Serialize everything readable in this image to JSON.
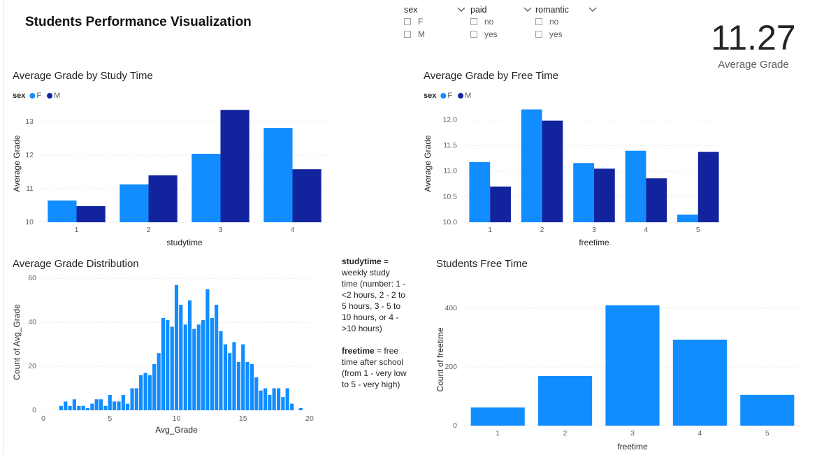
{
  "header": {
    "title": "Students Performance Visualization"
  },
  "slicers": [
    {
      "field": "sex",
      "options": [
        "F",
        "M"
      ]
    },
    {
      "field": "paid",
      "options": [
        "no",
        "yes"
      ]
    },
    {
      "field": "romantic",
      "options": [
        "no",
        "yes"
      ]
    }
  ],
  "card": {
    "value": 11.27,
    "label": "Average Grade"
  },
  "note": [
    {
      "term": "studytime",
      "text": "= weekly study time (number: 1 - <2 hours, 2 - 2 to 5 hours, 3 - 5 to 10 hours, or 4 - >10 hours)"
    },
    {
      "term": "freetime",
      "text": "= free time after school (from 1 - very low to 5 - very high)"
    }
  ],
  "chart_data": [
    {
      "type": "bar",
      "title": "Average Grade by Study Time",
      "legend_title": "sex",
      "categories": [
        "1",
        "2",
        "3",
        "4"
      ],
      "series": [
        {
          "name": "F",
          "color": "#118dff",
          "values": [
            10.65,
            11.13,
            12.04,
            12.81
          ]
        },
        {
          "name": "M",
          "color": "#12239e",
          "values": [
            10.48,
            11.4,
            13.35,
            11.58
          ]
        }
      ],
      "x_label": "studytime",
      "y_label": "Average Grade",
      "ylim": [
        10,
        13.5
      ],
      "yticks": [
        10,
        11,
        12,
        13
      ],
      "grid": true
    },
    {
      "type": "bar",
      "title": "Average Grade by Free Time",
      "legend_title": "sex",
      "categories": [
        "1",
        "2",
        "3",
        "4",
        "5"
      ],
      "series": [
        {
          "name": "F",
          "color": "#118dff",
          "values": [
            11.18,
            12.21,
            11.16,
            11.4,
            10.15
          ]
        },
        {
          "name": "M",
          "color": "#12239e",
          "values": [
            10.7,
            11.99,
            11.05,
            10.86,
            11.38
          ]
        }
      ],
      "x_label": "freetime",
      "y_label": "Average Grade",
      "ylim": [
        10,
        12.3
      ],
      "yticks": [
        {
          "value": 10,
          "label": "10.0"
        },
        10.5,
        {
          "value": 11,
          "label": "11.0"
        },
        11.5,
        {
          "value": 12,
          "label": "12.0"
        }
      ],
      "grid": true
    },
    {
      "type": "bar",
      "title": "Average Grade Distribution",
      "color": "#118dff",
      "x": [
        1.33,
        1.67,
        2,
        2.33,
        2.67,
        3,
        3.33,
        3.67,
        4,
        4.33,
        4.67,
        5,
        5.33,
        5.67,
        6,
        6.33,
        6.67,
        7,
        7.33,
        7.67,
        8,
        8.33,
        8.67,
        9,
        9.33,
        9.67,
        10,
        10.33,
        10.67,
        11,
        11.33,
        11.67,
        12,
        12.33,
        12.67,
        13,
        13.33,
        13.67,
        14,
        14.33,
        14.67,
        15,
        15.33,
        15.67,
        16,
        16.33,
        16.67,
        17,
        17.33,
        17.67,
        18,
        18.33,
        18.67,
        19,
        19.33
      ],
      "values": [
        2,
        4,
        2,
        5,
        2,
        2,
        1,
        3,
        5,
        5,
        2,
        7,
        4,
        4,
        7,
        3,
        10,
        10,
        16,
        17,
        16,
        21,
        26,
        42,
        41,
        38,
        57,
        48,
        39,
        50,
        37,
        39,
        41,
        55,
        42,
        48,
        36,
        30,
        26,
        31,
        22,
        30,
        22,
        21,
        15,
        9,
        10,
        7,
        10,
        10,
        6,
        10,
        3,
        0,
        1
      ],
      "x_label": "Avg_Grade",
      "y_label": "Count of Avg_Grade",
      "xlim": [
        0,
        20
      ],
      "xticks": [
        0,
        5,
        10,
        15,
        20
      ],
      "ylim": [
        0,
        62
      ],
      "yticks": [
        0,
        20,
        40,
        60
      ],
      "grid": true
    },
    {
      "type": "bar",
      "title": "Students Free Time",
      "color": "#118dff",
      "categories": [
        "1",
        "2",
        "3",
        "4",
        "5"
      ],
      "values": [
        62,
        169,
        410,
        293,
        105
      ],
      "x_label": "freetime",
      "y_label": "Count of freetime",
      "ylim": [
        0,
        450
      ],
      "yticks": [
        0,
        200,
        400
      ],
      "grid": true
    }
  ]
}
